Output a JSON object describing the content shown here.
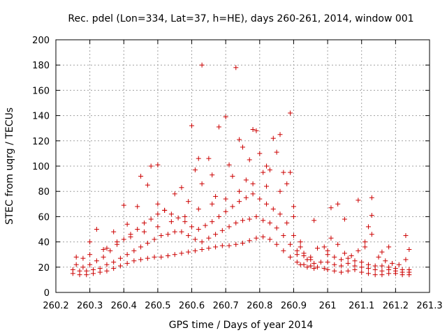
{
  "chart_data": {
    "type": "scatter",
    "title": "Rec. pdel (Lon=334, Lat=37, h=HE), days 260-261, 2014, window 001",
    "xlabel": "GPS time / Days of year 2014",
    "ylabel": "STEC from uqrg / TECUs",
    "xlim": [
      260.2,
      261.3
    ],
    "ylim": [
      0,
      200
    ],
    "xticks": [
      "260.2",
      "260.3",
      "260.4",
      "260.5",
      "260.6",
      "260.7",
      "260.8",
      "260.9",
      "261",
      "261.1",
      "261.2",
      "261.3"
    ],
    "yticks": [
      "0",
      "20",
      "40",
      "60",
      "80",
      "100",
      "120",
      "140",
      "160",
      "180",
      "200"
    ],
    "grid": true,
    "marker": "plus",
    "color": "#cc0000",
    "points": [
      [
        260.25,
        15
      ],
      [
        260.27,
        14
      ],
      [
        260.29,
        14
      ],
      [
        260.31,
        15
      ],
      [
        260.33,
        16
      ],
      [
        260.35,
        17
      ],
      [
        260.37,
        19
      ],
      [
        260.39,
        21
      ],
      [
        260.41,
        23
      ],
      [
        260.43,
        25
      ],
      [
        260.45,
        26
      ],
      [
        260.47,
        27
      ],
      [
        260.49,
        28
      ],
      [
        260.51,
        28
      ],
      [
        260.53,
        29
      ],
      [
        260.55,
        30
      ],
      [
        260.57,
        31
      ],
      [
        260.59,
        32
      ],
      [
        260.61,
        33
      ],
      [
        260.63,
        34
      ],
      [
        260.65,
        35
      ],
      [
        260.67,
        36
      ],
      [
        260.69,
        37
      ],
      [
        260.71,
        37
      ],
      [
        260.73,
        38
      ],
      [
        260.75,
        39
      ],
      [
        260.77,
        41
      ],
      [
        260.79,
        43
      ],
      [
        260.81,
        44
      ],
      [
        260.83,
        42
      ],
      [
        260.85,
        38
      ],
      [
        260.87,
        33
      ],
      [
        260.89,
        28
      ],
      [
        260.91,
        24
      ],
      [
        260.93,
        22
      ],
      [
        260.95,
        21
      ],
      [
        260.97,
        20
      ],
      [
        260.99,
        19
      ],
      [
        260.25,
        18
      ],
      [
        260.27,
        17
      ],
      [
        260.29,
        17
      ],
      [
        260.31,
        18
      ],
      [
        260.33,
        19
      ],
      [
        260.35,
        22
      ],
      [
        260.37,
        24
      ],
      [
        260.39,
        27
      ],
      [
        260.41,
        30
      ],
      [
        260.43,
        33
      ],
      [
        260.45,
        36
      ],
      [
        260.47,
        39
      ],
      [
        260.49,
        42
      ],
      [
        260.51,
        45
      ],
      [
        260.53,
        46
      ],
      [
        260.55,
        48
      ],
      [
        260.57,
        48
      ],
      [
        260.59,
        45
      ],
      [
        260.61,
        42
      ],
      [
        260.63,
        40
      ],
      [
        260.65,
        43
      ],
      [
        260.67,
        46
      ],
      [
        260.69,
        49
      ],
      [
        260.71,
        52
      ],
      [
        260.73,
        55
      ],
      [
        260.75,
        57
      ],
      [
        260.77,
        58
      ],
      [
        260.79,
        60
      ],
      [
        260.81,
        57
      ],
      [
        260.83,
        55
      ],
      [
        260.85,
        51
      ],
      [
        260.87,
        45
      ],
      [
        260.89,
        38
      ],
      [
        260.91,
        33
      ],
      [
        260.93,
        29
      ],
      [
        260.95,
        26
      ],
      [
        260.26,
        22
      ],
      [
        260.28,
        20
      ],
      [
        260.3,
        22
      ],
      [
        260.32,
        25
      ],
      [
        260.34,
        28
      ],
      [
        260.36,
        33
      ],
      [
        260.38,
        38
      ],
      [
        260.4,
        42
      ],
      [
        260.42,
        46
      ],
      [
        260.44,
        50
      ],
      [
        260.46,
        55
      ],
      [
        260.48,
        58
      ],
      [
        260.5,
        62
      ],
      [
        260.52,
        65
      ],
      [
        260.54,
        62
      ],
      [
        260.56,
        59
      ],
      [
        260.58,
        56
      ],
      [
        260.6,
        52
      ],
      [
        260.62,
        50
      ],
      [
        260.64,
        53
      ],
      [
        260.66,
        56
      ],
      [
        260.68,
        60
      ],
      [
        260.7,
        64
      ],
      [
        260.72,
        68
      ],
      [
        260.74,
        72
      ],
      [
        260.76,
        75
      ],
      [
        260.78,
        78
      ],
      [
        260.8,
        74
      ],
      [
        260.82,
        70
      ],
      [
        260.84,
        66
      ],
      [
        260.86,
        62
      ],
      [
        260.88,
        55
      ],
      [
        260.9,
        45
      ],
      [
        260.92,
        36
      ],
      [
        260.26,
        28
      ],
      [
        260.3,
        30
      ],
      [
        260.34,
        34
      ],
      [
        260.38,
        40
      ],
      [
        260.42,
        44
      ],
      [
        260.46,
        48
      ],
      [
        260.5,
        52
      ],
      [
        260.54,
        56
      ],
      [
        260.58,
        60
      ],
      [
        260.62,
        66
      ],
      [
        260.66,
        70
      ],
      [
        260.7,
        74
      ],
      [
        260.74,
        80
      ],
      [
        260.78,
        86
      ],
      [
        260.82,
        84
      ],
      [
        260.86,
        80
      ],
      [
        260.9,
        60
      ],
      [
        260.47,
        85
      ],
      [
        260.48,
        100
      ],
      [
        260.5,
        70
      ],
      [
        260.52,
        65
      ],
      [
        260.55,
        78
      ],
      [
        260.57,
        83
      ],
      [
        260.59,
        72
      ],
      [
        260.6,
        132
      ],
      [
        260.61,
        97
      ],
      [
        260.62,
        106
      ],
      [
        260.63,
        86
      ],
      [
        260.63,
        180
      ],
      [
        260.65,
        106
      ],
      [
        260.66,
        93
      ],
      [
        260.67,
        76
      ],
      [
        260.68,
        131
      ],
      [
        260.7,
        139
      ],
      [
        260.71,
        101
      ],
      [
        260.72,
        92
      ],
      [
        260.73,
        178
      ],
      [
        260.74,
        121
      ],
      [
        260.75,
        115
      ],
      [
        260.76,
        89
      ],
      [
        260.77,
        105
      ],
      [
        260.78,
        129
      ],
      [
        260.79,
        128
      ],
      [
        260.8,
        110
      ],
      [
        260.81,
        95
      ],
      [
        260.82,
        100
      ],
      [
        260.83,
        97
      ],
      [
        260.84,
        122
      ],
      [
        260.85,
        111
      ],
      [
        260.86,
        125
      ],
      [
        260.87,
        95
      ],
      [
        260.88,
        86
      ],
      [
        260.89,
        142
      ],
      [
        260.89,
        95
      ],
      [
        260.9,
        68
      ],
      [
        260.96,
        57
      ],
      [
        260.4,
        69
      ],
      [
        260.45,
        92
      ],
      [
        260.5,
        101
      ],
      [
        260.44,
        68
      ],
      [
        260.41,
        54
      ],
      [
        260.37,
        48
      ],
      [
        260.32,
        50
      ],
      [
        260.28,
        27
      ],
      [
        260.3,
        40
      ],
      [
        260.35,
        35
      ],
      [
        261.0,
        18
      ],
      [
        261.02,
        17
      ],
      [
        261.04,
        16
      ],
      [
        261.06,
        17
      ],
      [
        261.08,
        18
      ],
      [
        261.1,
        16
      ],
      [
        261.12,
        15
      ],
      [
        261.14,
        14
      ],
      [
        261.16,
        14
      ],
      [
        261.18,
        15
      ],
      [
        261.2,
        15
      ],
      [
        261.22,
        14
      ],
      [
        261.24,
        14
      ],
      [
        261.0,
        24
      ],
      [
        261.02,
        22
      ],
      [
        261.04,
        21
      ],
      [
        261.06,
        23
      ],
      [
        261.08,
        21
      ],
      [
        261.1,
        20
      ],
      [
        261.12,
        19
      ],
      [
        261.14,
        18
      ],
      [
        261.16,
        17
      ],
      [
        261.18,
        18
      ],
      [
        261.2,
        17
      ],
      [
        261.22,
        16
      ],
      [
        261.24,
        16
      ],
      [
        261.0,
        30
      ],
      [
        261.02,
        28
      ],
      [
        261.04,
        26
      ],
      [
        261.06,
        27
      ],
      [
        261.08,
        25
      ],
      [
        261.1,
        24
      ],
      [
        261.12,
        22
      ],
      [
        261.14,
        21
      ],
      [
        261.16,
        21
      ],
      [
        261.18,
        20
      ],
      [
        261.2,
        19
      ],
      [
        261.22,
        18
      ],
      [
        261.24,
        18
      ],
      [
        261.01,
        43
      ],
      [
        261.03,
        38
      ],
      [
        261.05,
        31
      ],
      [
        261.07,
        29
      ],
      [
        261.09,
        33
      ],
      [
        261.11,
        36
      ],
      [
        261.13,
        46
      ],
      [
        261.15,
        28
      ],
      [
        261.17,
        25
      ],
      [
        261.19,
        23
      ],
      [
        261.21,
        22
      ],
      [
        261.23,
        26
      ],
      [
        261.24,
        34
      ],
      [
        261.0,
        33
      ],
      [
        261.01,
        67
      ],
      [
        261.03,
        70
      ],
      [
        261.05,
        58
      ],
      [
        261.09,
        73
      ],
      [
        261.12,
        52
      ],
      [
        261.13,
        61
      ],
      [
        261.13,
        75
      ],
      [
        261.18,
        36
      ],
      [
        261.23,
        45
      ],
      [
        261.11,
        40
      ],
      [
        261.16,
        32
      ],
      [
        260.91,
        30
      ],
      [
        260.93,
        31
      ],
      [
        260.95,
        28
      ],
      [
        260.97,
        35
      ],
      [
        260.99,
        36
      ],
      [
        260.92,
        40
      ],
      [
        260.94,
        26
      ],
      [
        260.96,
        23
      ],
      [
        260.98,
        24
      ],
      [
        260.92,
        22
      ],
      [
        260.94,
        20
      ],
      [
        260.96,
        19
      ]
    ]
  }
}
